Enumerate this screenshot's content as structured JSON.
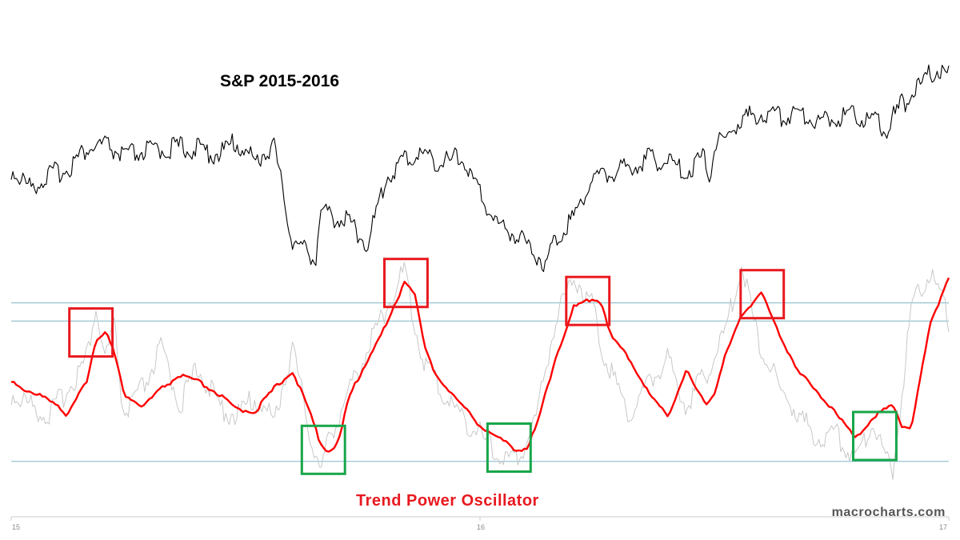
{
  "chart_data": [
    {
      "type": "line",
      "title": "S&P 2015-2016",
      "series": [
        {
          "name": "",
          "color": "#000000",
          "x": [
            0,
            0.02,
            0.04,
            0.06,
            0.08,
            0.1,
            0.12,
            0.14,
            0.16,
            0.18,
            0.2,
            0.22,
            0.24,
            0.26,
            0.28,
            0.3,
            0.32,
            0.325,
            0.33,
            0.34,
            0.36,
            0.38,
            0.4,
            0.42,
            0.44,
            0.46,
            0.48,
            0.5,
            0.52,
            0.54,
            0.56,
            0.57,
            0.58,
            0.6,
            0.62,
            0.64,
            0.66,
            0.68,
            0.7,
            0.72,
            0.74,
            0.745,
            0.75,
            0.76,
            0.78,
            0.8,
            0.82,
            0.84,
            0.86,
            0.88,
            0.9,
            0.92,
            0.935,
            0.94,
            0.95,
            0.96,
            0.97,
            0.98,
            0.99,
            1.0
          ],
          "values": [
            2058,
            2020,
            2045,
            2060,
            2100,
            2110,
            2085,
            2095,
            2100,
            2105,
            2100,
            2090,
            2115,
            2075,
            2110,
            1905,
            1880,
            1875,
            1970,
            1960,
            1950,
            1900,
            2040,
            2080,
            2090,
            2070,
            2085,
            2005,
            1940,
            1920,
            1880,
            1860,
            1910,
            1960,
            2040,
            2050,
            2065,
            2080,
            2075,
            2050,
            2090,
            2040,
            2105,
            2120,
            2165,
            2175,
            2170,
            2180,
            2160,
            2170,
            2175,
            2160,
            2140,
            2165,
            2195,
            2215,
            2230,
            2265,
            2265,
            2260
          ]
        }
      ]
    },
    {
      "type": "line",
      "title": "Trend Power Oscillator",
      "xlabel": "",
      "ylabel": "",
      "x_ticks": [
        {
          "label": "15",
          "pos": 0
        },
        {
          "label": "16",
          "pos": 0.5
        },
        {
          "label": "17",
          "pos": 1
        }
      ],
      "reference_levels": [
        0.8,
        0.72,
        0.1
      ],
      "series": [
        {
          "name": "",
          "color": "#ff0000",
          "x": [
            0,
            0.02,
            0.04,
            0.05,
            0.06,
            0.08,
            0.09,
            0.1,
            0.11,
            0.12,
            0.14,
            0.16,
            0.18,
            0.2,
            0.22,
            0.24,
            0.26,
            0.28,
            0.3,
            0.32,
            0.33,
            0.34,
            0.35,
            0.36,
            0.38,
            0.4,
            0.42,
            0.43,
            0.44,
            0.45,
            0.46,
            0.48,
            0.5,
            0.52,
            0.54,
            0.55,
            0.56,
            0.58,
            0.6,
            0.62,
            0.63,
            0.64,
            0.66,
            0.68,
            0.7,
            0.72,
            0.74,
            0.75,
            0.76,
            0.78,
            0.8,
            0.82,
            0.84,
            0.86,
            0.88,
            0.9,
            0.92,
            0.94,
            0.95,
            0.96,
            0.98,
            1.0
          ],
          "values": [
            0.46,
            0.4,
            0.38,
            0.35,
            0.3,
            0.45,
            0.63,
            0.68,
            0.58,
            0.4,
            0.34,
            0.42,
            0.48,
            0.45,
            0.4,
            0.33,
            0.32,
            0.42,
            0.5,
            0.3,
            0.18,
            0.14,
            0.2,
            0.38,
            0.55,
            0.7,
            0.9,
            0.85,
            0.62,
            0.5,
            0.45,
            0.35,
            0.26,
            0.2,
            0.15,
            0.16,
            0.25,
            0.55,
            0.78,
            0.82,
            0.8,
            0.65,
            0.55,
            0.4,
            0.3,
            0.5,
            0.35,
            0.4,
            0.55,
            0.75,
            0.85,
            0.65,
            0.5,
            0.4,
            0.32,
            0.2,
            0.3,
            0.35,
            0.26,
            0.25,
            0.7,
            0.92
          ]
        },
        {
          "name": "",
          "color": "#c8c8c8",
          "x": [
            0,
            0.02,
            0.04,
            0.06,
            0.08,
            0.09,
            0.1,
            0.11,
            0.12,
            0.14,
            0.16,
            0.18,
            0.2,
            0.22,
            0.24,
            0.26,
            0.28,
            0.3,
            0.32,
            0.33,
            0.34,
            0.36,
            0.38,
            0.4,
            0.42,
            0.43,
            0.44,
            0.46,
            0.48,
            0.5,
            0.52,
            0.54,
            0.56,
            0.58,
            0.6,
            0.62,
            0.63,
            0.64,
            0.66,
            0.68,
            0.7,
            0.72,
            0.74,
            0.76,
            0.78,
            0.79,
            0.8,
            0.82,
            0.84,
            0.86,
            0.88,
            0.9,
            0.92,
            0.93,
            0.94,
            0.96,
            0.98,
            1.0
          ],
          "values": [
            0.4,
            0.35,
            0.3,
            0.42,
            0.55,
            0.78,
            0.55,
            0.7,
            0.3,
            0.42,
            0.6,
            0.35,
            0.52,
            0.35,
            0.3,
            0.38,
            0.28,
            0.6,
            0.2,
            0.05,
            0.22,
            0.4,
            0.6,
            0.78,
            0.95,
            0.7,
            0.55,
            0.4,
            0.3,
            0.22,
            0.12,
            0.1,
            0.3,
            0.72,
            0.92,
            0.8,
            0.6,
            0.5,
            0.3,
            0.45,
            0.55,
            0.35,
            0.48,
            0.65,
            0.98,
            0.75,
            0.6,
            0.42,
            0.3,
            0.2,
            0.22,
            0.12,
            0.28,
            0.15,
            0.05,
            0.78,
            0.95,
            0.72
          ]
        }
      ]
    }
  ],
  "highlights": [
    {
      "kind": "peak",
      "color": "#e8191f",
      "x_from": 0.062,
      "x_to": 0.108
    },
    {
      "kind": "peak",
      "color": "#e8191f",
      "x_from": 0.398,
      "x_to": 0.444
    },
    {
      "kind": "peak",
      "color": "#e8191f",
      "x_from": 0.592,
      "x_to": 0.638
    },
    {
      "kind": "peak",
      "color": "#e8191f",
      "x_from": 0.778,
      "x_to": 0.824
    },
    {
      "kind": "trough",
      "color": "#18a64a",
      "x_from": 0.31,
      "x_to": 0.356
    },
    {
      "kind": "trough",
      "color": "#18a64a",
      "x_from": 0.508,
      "x_to": 0.554
    },
    {
      "kind": "trough",
      "color": "#18a64a",
      "x_from": 0.898,
      "x_to": 0.944
    }
  ],
  "watermark": "macrocharts.com",
  "colors": {
    "reference_line": "#7fb7c7",
    "axis": "#cccccc",
    "title_top": "#000000",
    "title_bottom": "#e8191f",
    "watermark": "#555555"
  }
}
